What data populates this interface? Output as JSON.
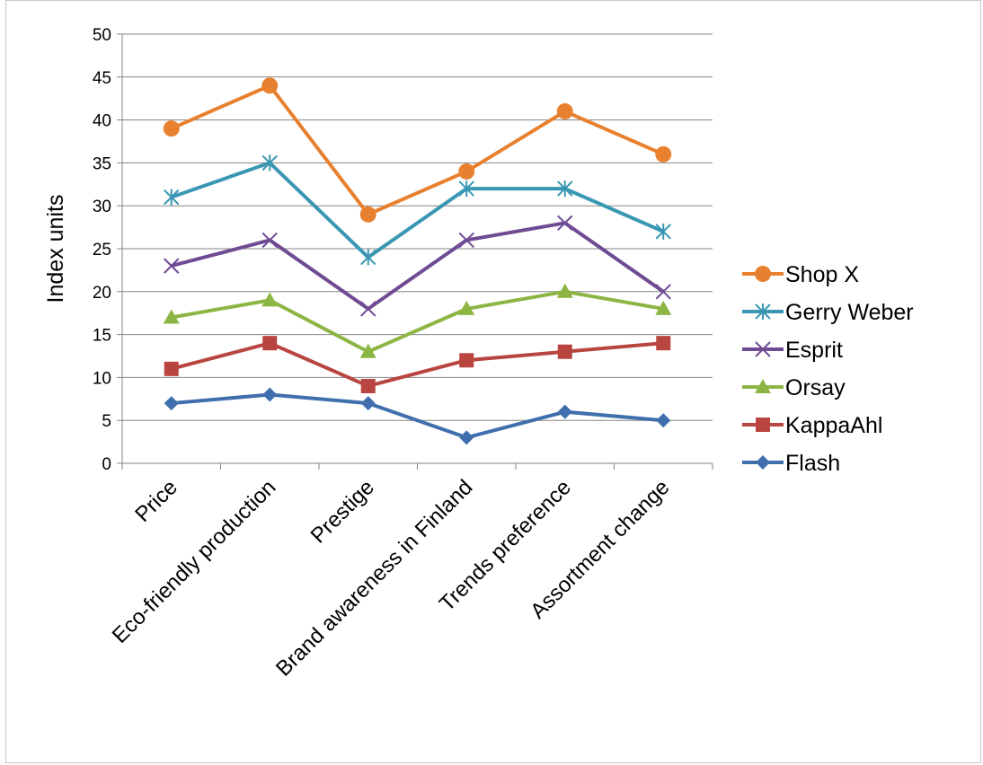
{
  "chart_data": {
    "type": "line",
    "title": "",
    "xlabel": "",
    "ylabel": "Index units",
    "ylim": [
      0,
      50
    ],
    "ytick_step": 5,
    "grid": true,
    "legend_position": "right",
    "categories": [
      "Price",
      "Eco-friendly production",
      "Prestige",
      "Brand awareness in Finland",
      "Trends preference",
      "Assortment change"
    ],
    "series": [
      {
        "name": "Shop X",
        "color": "#e8812f",
        "marker": "circle",
        "values": [
          39,
          44,
          29,
          34,
          41,
          36
        ]
      },
      {
        "name": "Gerry Weber",
        "color": "#3a97b3",
        "marker": "asterisk",
        "values": [
          31,
          35,
          24,
          32,
          32,
          27
        ]
      },
      {
        "name": "Esprit",
        "color": "#6f4b94",
        "marker": "x",
        "values": [
          23,
          26,
          18,
          26,
          28,
          20
        ]
      },
      {
        "name": "Orsay",
        "color": "#8db544",
        "marker": "triangle",
        "values": [
          17,
          19,
          13,
          18,
          20,
          18
        ]
      },
      {
        "name": "KappaAhl",
        "color": "#b8453f",
        "marker": "square",
        "values": [
          11,
          14,
          9,
          12,
          13,
          14
        ]
      },
      {
        "name": "Flash",
        "color": "#3f6fad",
        "marker": "diamond",
        "values": [
          7,
          8,
          7,
          3,
          6,
          5
        ]
      }
    ]
  }
}
